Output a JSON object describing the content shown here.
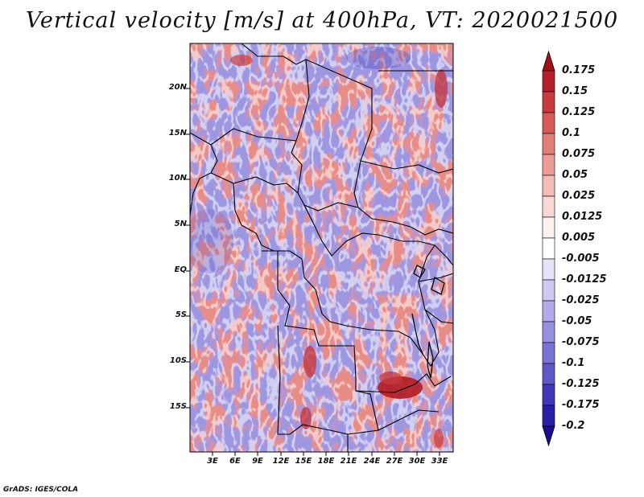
{
  "title": "Vertical velocity [m/s] at 400hPa, VT: 2020021500",
  "credit": "GrADS: IGES/COLA",
  "lat_labels": [
    "20N",
    "15N",
    "10N",
    "5N",
    "EQ",
    "5S",
    "10S",
    "15S"
  ],
  "lon_labels": [
    "3E",
    "6E",
    "9E",
    "12E",
    "15E",
    "18E",
    "21E",
    "24E",
    "27E",
    "30E",
    "33E"
  ],
  "colorbar": {
    "labels": [
      "0.175",
      "0.15",
      "0.125",
      "0.1",
      "0.075",
      "0.05",
      "0.025",
      "0.0125",
      "0.005",
      "-0.005",
      "-0.0125",
      "-0.025",
      "-0.05",
      "-0.075",
      "-0.1",
      "-0.125",
      "-0.175",
      "-0.2"
    ],
    "colors": [
      "#a01018",
      "#b5202a",
      "#c83a3e",
      "#d85a58",
      "#e37d78",
      "#ec9d98",
      "#f3bcb8",
      "#f8d8d5",
      "#fdf0ee",
      "#ffffff",
      "#e6e4f8",
      "#cdc9f2",
      "#b1abea",
      "#9590e0",
      "#7a74d6",
      "#5e57c8",
      "#4138b8",
      "#2a1fa6",
      "#1a0f8e"
    ]
  },
  "field_colors": {
    "strong_pos": "#b82028",
    "mid_pos": "#e58880",
    "weak_pos": "#f4c6c0",
    "weak_neg": "#d9d6f4",
    "mid_neg": "#9e98e4",
    "strong_neg": "#5a52c4"
  }
}
